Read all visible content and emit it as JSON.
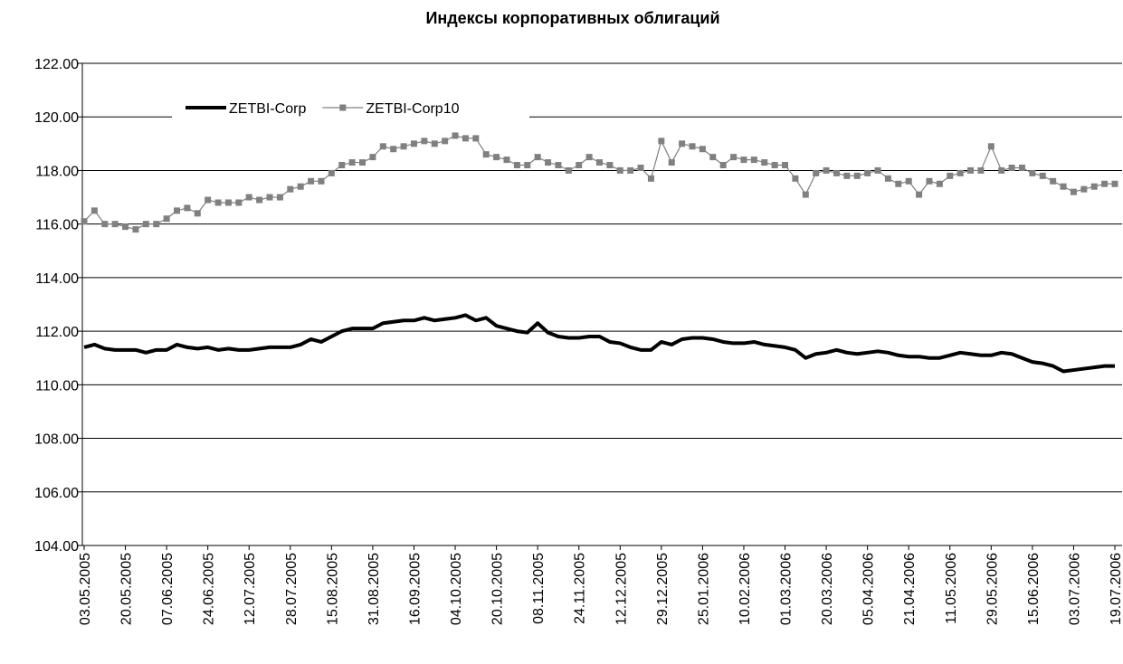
{
  "chart_data": {
    "type": "line",
    "title": "Индексы корпоративных облигаций",
    "categories": [
      "03.05.2005",
      null,
      null,
      null,
      "20.05.2005",
      null,
      null,
      null,
      "07.06.2005",
      null,
      null,
      null,
      "24.06.2005",
      null,
      null,
      null,
      "12.07.2005",
      null,
      null,
      null,
      "28.07.2005",
      null,
      null,
      null,
      "15.08.2005",
      null,
      null,
      null,
      "31.08.2005",
      null,
      null,
      null,
      "16.09.2005",
      null,
      null,
      null,
      "04.10.2005",
      null,
      null,
      null,
      "20.10.2005",
      null,
      null,
      null,
      "08.11.2005",
      null,
      null,
      null,
      "24.11.2005",
      null,
      null,
      null,
      "12.12.2005",
      null,
      null,
      null,
      "29.12.2005",
      null,
      null,
      null,
      "25.01.2006",
      null,
      null,
      null,
      "10.02.2006",
      null,
      null,
      null,
      "01.03.2006",
      null,
      null,
      null,
      "20.03.2006",
      null,
      null,
      null,
      "05.04.2006",
      null,
      null,
      null,
      "21.04.2006",
      null,
      null,
      null,
      "11.05.2006",
      null,
      null,
      null,
      "29.05.2006",
      null,
      null,
      null,
      "15.06.2006",
      null,
      null,
      null,
      "03.07.2006",
      null,
      null,
      null,
      "19.07.2006"
    ],
    "series": [
      {
        "name": "ZETBI-Corp",
        "color": "#000000",
        "values": [
          111.4,
          111.5,
          111.35,
          111.3,
          111.3,
          111.3,
          111.2,
          111.3,
          111.3,
          111.5,
          111.4,
          111.35,
          111.4,
          111.3,
          111.35,
          111.3,
          111.3,
          111.35,
          111.4,
          111.4,
          111.4,
          111.5,
          111.7,
          111.6,
          111.8,
          112.0,
          112.1,
          112.1,
          112.1,
          112.3,
          112.35,
          112.4,
          112.4,
          112.5,
          112.4,
          112.45,
          112.5,
          112.6,
          112.4,
          112.5,
          112.2,
          112.1,
          112.0,
          111.95,
          112.3,
          111.95,
          111.8,
          111.75,
          111.75,
          111.8,
          111.8,
          111.6,
          111.55,
          111.4,
          111.3,
          111.3,
          111.6,
          111.5,
          111.7,
          111.75,
          111.75,
          111.7,
          111.6,
          111.55,
          111.55,
          111.6,
          111.5,
          111.45,
          111.4,
          111.3,
          111.0,
          111.15,
          111.2,
          111.3,
          111.2,
          111.15,
          111.2,
          111.25,
          111.2,
          111.1,
          111.05,
          111.05,
          111.0,
          111.0,
          111.1,
          111.2,
          111.15,
          111.1,
          111.1,
          111.2,
          111.15,
          111.0,
          110.85,
          110.8,
          110.7,
          110.5,
          110.55,
          110.6,
          110.65,
          110.7,
          110.7
        ]
      },
      {
        "name": "ZETBI-Corp10",
        "color": "#808080",
        "marker": "square",
        "values": [
          116.1,
          116.5,
          116.0,
          116.0,
          115.9,
          115.8,
          116.0,
          116.0,
          116.2,
          116.5,
          116.6,
          116.4,
          116.9,
          116.8,
          116.8,
          116.8,
          117.0,
          116.9,
          117.0,
          117.0,
          117.3,
          117.4,
          117.6,
          117.6,
          117.9,
          118.2,
          118.3,
          118.3,
          118.5,
          118.9,
          118.8,
          118.9,
          119.0,
          119.1,
          119.0,
          119.1,
          119.3,
          119.2,
          119.2,
          118.6,
          118.5,
          118.4,
          118.2,
          118.2,
          118.5,
          118.3,
          118.2,
          118.0,
          118.2,
          118.5,
          118.3,
          118.2,
          118.0,
          118.0,
          118.1,
          117.7,
          119.1,
          118.3,
          119.0,
          118.9,
          118.8,
          118.5,
          118.2,
          118.5,
          118.4,
          118.4,
          118.3,
          118.2,
          118.2,
          117.7,
          117.1,
          117.9,
          118.0,
          117.9,
          117.8,
          117.8,
          117.9,
          118.0,
          117.7,
          117.5,
          117.6,
          117.1,
          117.6,
          117.5,
          117.8,
          117.9,
          118.0,
          118.0,
          118.9,
          118.0,
          118.1,
          118.1,
          117.9,
          117.8,
          117.6,
          117.4,
          117.2,
          117.3,
          117.4,
          117.5,
          117.5
        ]
      }
    ],
    "ylim": [
      104,
      122
    ],
    "yticks": [
      {
        "value": 104,
        "label": "104.00"
      },
      {
        "value": 106,
        "label": "106.00"
      },
      {
        "value": 108,
        "label": "108.00"
      },
      {
        "value": 110,
        "label": "110.00"
      },
      {
        "value": 112,
        "label": "112.00"
      },
      {
        "value": 114,
        "label": "114.00"
      },
      {
        "value": 116,
        "label": "116.00"
      },
      {
        "value": 118,
        "label": "118.00"
      },
      {
        "value": 120,
        "label": "120.00"
      },
      {
        "value": 122,
        "label": "122.00"
      }
    ],
    "grid": true,
    "legend": "top-left"
  }
}
